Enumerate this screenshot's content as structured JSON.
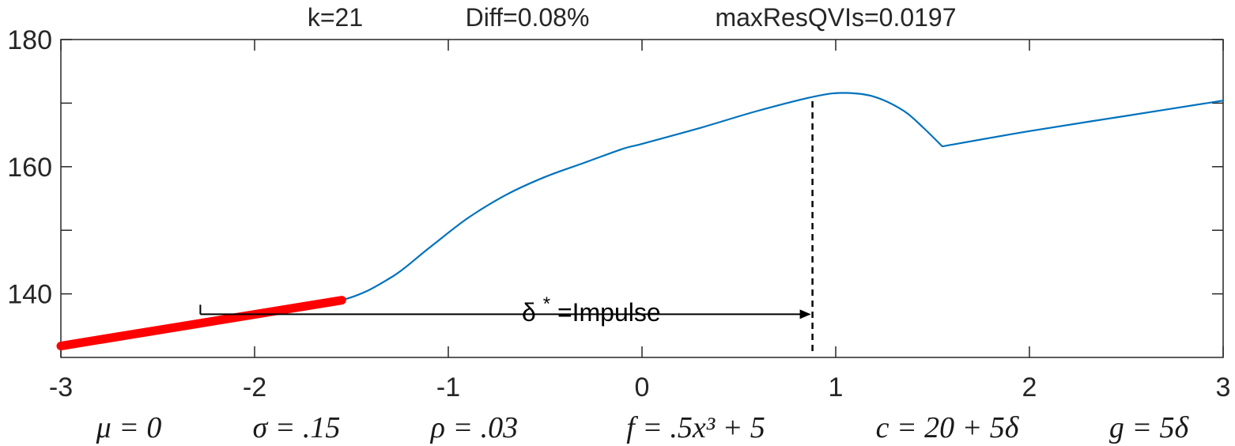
{
  "title_parts": [
    "k=21",
    "Diff=0.08%",
    "maxResQVIs=0.0197"
  ],
  "annotation": {
    "symbol": "δ",
    "superscript": "*",
    "text": "=Impulse"
  },
  "parameters": [
    "μ = 0",
    "σ = .15",
    "ρ = .03",
    "f = .5x³ + 5",
    "c = 20 + 5δ",
    "g = 5δ"
  ],
  "colors": {
    "curve": "#0072BD",
    "highlight": "#FF0000",
    "axes": "#262626",
    "marker": "#000000"
  },
  "chart_data": {
    "type": "line",
    "xlim": [
      -3,
      3
    ],
    "ylim": [
      130,
      180
    ],
    "xticks": [
      "-3",
      "-2",
      "-1",
      "0",
      "1",
      "2",
      "3"
    ],
    "yticks": [
      "140",
      "160",
      "180"
    ],
    "ytick_values": [
      140,
      160,
      180
    ],
    "yminor_ticks": [
      150,
      170
    ],
    "grid": false,
    "series": [
      {
        "x": [
          -3,
          -2.5,
          -2,
          -1.55,
          -1.3,
          -1.1,
          -0.9,
          -0.7,
          -0.5,
          -0.3,
          -0.1,
          0,
          0.3,
          0.6,
          0.9,
          1.05,
          1.2,
          1.35,
          1.45,
          1.55,
          2,
          2.5,
          3
        ],
        "y": [
          131.8,
          134.2,
          136.7,
          139.0,
          142.5,
          147.2,
          151.9,
          155.6,
          158.4,
          160.6,
          162.8,
          163.6,
          166.1,
          168.8,
          171.1,
          171.6,
          171.0,
          168.8,
          166.2,
          163.2,
          165.6,
          168.0,
          170.4
        ]
      },
      {
        "style": "thick-highlight",
        "x": [
          -3,
          -1.55
        ],
        "y": [
          131.8,
          139.0
        ]
      }
    ],
    "annotations": {
      "delta_star_x": 0.88,
      "arrow_from_x": -2.28,
      "arrow_y": 136.8,
      "dashed_line_y": [
        131.0,
        171.0
      ]
    }
  }
}
